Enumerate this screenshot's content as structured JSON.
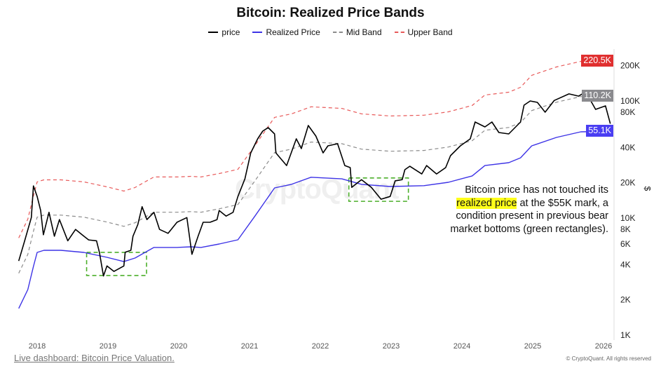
{
  "chart_data": {
    "type": "line",
    "title": "Bitcoin: Realized Price Bands",
    "y_scale": "log",
    "y_axis_side": "right",
    "ylabel": "$",
    "ylim": [
      1000,
      260000
    ],
    "xlim": [
      "2017-09-20",
      "2026-02-20"
    ],
    "y_ticks": [
      "1K",
      "2K",
      "4K",
      "6K",
      "8K",
      "10K",
      "20K",
      "40K",
      "80K",
      "100K",
      "200K"
    ],
    "y_tick_values": [
      1000,
      2000,
      4000,
      6000,
      8000,
      10000,
      20000,
      40000,
      80000,
      100000,
      200000
    ],
    "x_ticks": [
      "2018",
      "2019",
      "2020",
      "2021",
      "2022",
      "2023",
      "2024",
      "2025",
      "2026"
    ],
    "grid": false,
    "legend_position": "top-center",
    "series": [
      {
        "name": "price",
        "color": "#000000",
        "style": "solid",
        "dates": [
          "2017-09-28",
          "2017-10-27",
          "2017-12-02",
          "2017-12-13",
          "2018-01-01",
          "2018-01-19",
          "2018-02-02",
          "2018-03-03",
          "2018-03-31",
          "2018-04-26",
          "2018-06-08",
          "2018-07-18",
          "2018-08-30",
          "2018-09-24",
          "2018-11-03",
          "2018-11-18",
          "2018-12-09",
          "2018-12-27",
          "2019-02-01",
          "2019-03-24",
          "2019-03-31",
          "2019-04-29",
          "2019-05-10",
          "2019-06-04",
          "2019-06-26",
          "2019-07-21",
          "2019-08-26",
          "2019-09-24",
          "2019-11-07",
          "2019-12-23",
          "2020-02-12",
          "2020-03-09",
          "2020-04-10",
          "2020-05-06",
          "2020-06-11",
          "2020-07-17",
          "2020-07-28",
          "2020-09-02",
          "2020-10-08",
          "2020-11-02",
          "2020-12-08",
          "2021-01-07",
          "2021-02-12",
          "2021-03-10",
          "2021-04-07",
          "2021-05-10",
          "2021-05-17",
          "2021-07-11",
          "2021-08-30",
          "2021-09-25",
          "2021-10-31",
          "2021-12-09",
          "2022-01-15",
          "2022-02-09",
          "2022-03-31",
          "2022-05-07",
          "2022-06-04",
          "2022-06-12",
          "2022-08-01",
          "2022-09-21",
          "2022-11-10",
          "2022-12-27",
          "2023-01-22",
          "2023-02-27",
          "2023-03-13",
          "2023-04-07",
          "2023-06-08",
          "2023-07-03",
          "2023-08-23",
          "2023-10-09",
          "2023-11-03",
          "2023-12-24",
          "2024-02-13",
          "2024-03-09",
          "2024-04-29",
          "2024-06-04",
          "2024-07-10",
          "2024-08-30",
          "2024-10-30",
          "2024-11-17",
          "2024-12-19",
          "2025-01-25",
          "2025-03-06",
          "2025-04-22",
          "2025-07-07",
          "2025-08-26",
          "2025-10-01",
          "2025-11-21",
          "2026-01-11",
          "2026-02-05"
        ],
        "values": [
          4300,
          6250,
          10100,
          18800,
          15300,
          11600,
          7200,
          11200,
          7000,
          9700,
          6400,
          8000,
          7000,
          6500,
          6400,
          5100,
          3200,
          3900,
          3500,
          3900,
          5100,
          5300,
          7000,
          8800,
          12500,
          9700,
          11200,
          8000,
          7400,
          9200,
          10100,
          4900,
          7000,
          9200,
          9200,
          9700,
          11600,
          10400,
          11200,
          15300,
          21600,
          36000,
          47500,
          55300,
          59200,
          52300,
          36000,
          28100,
          47500,
          39200,
          61700,
          50200,
          36000,
          41400,
          43100,
          28100,
          27000,
          18300,
          21300,
          18300,
          14500,
          15300,
          20800,
          21300,
          25900,
          27700,
          23800,
          28100,
          23800,
          27000,
          34100,
          41400,
          47500,
          66100,
          60000,
          66100,
          53800,
          52300,
          66100,
          92000,
          100000,
          97300,
          80200,
          101000,
          115000,
          110000,
          120000,
          84700,
          90800,
          64000
        ]
      },
      {
        "name": "Realized Price",
        "color": "#3d33e6",
        "style": "solid",
        "dates": [
          "2017-09-28",
          "2017-11-14",
          "2017-12-13",
          "2018-01-01",
          "2018-02-05",
          "2018-05-03",
          "2018-08-30",
          "2018-12-27",
          "2019-03-24",
          "2019-05-21",
          "2019-07-11",
          "2019-08-26",
          "2019-12-23",
          "2020-03-05",
          "2020-04-25",
          "2020-07-28",
          "2020-11-02",
          "2021-01-29",
          "2021-05-10",
          "2021-08-05",
          "2021-11-14",
          "2022-04-22",
          "2022-08-01",
          "2022-12-27",
          "2023-06-19",
          "2023-10-23",
          "2024-02-23",
          "2024-04-29",
          "2024-08-30",
          "2024-10-30",
          "2024-12-27",
          "2025-05-03",
          "2025-09-06",
          "2026-02-05"
        ],
        "values": [
          1690,
          2450,
          3860,
          5090,
          5300,
          5300,
          5090,
          4620,
          4250,
          4560,
          5090,
          5610,
          5610,
          5680,
          5610,
          6000,
          6520,
          10400,
          18100,
          19400,
          22300,
          21600,
          19400,
          18600,
          18900,
          20200,
          22900,
          28100,
          29700,
          32700,
          41400,
          48800,
          54500,
          55100
        ]
      },
      {
        "name": "Mid Band",
        "color": "#8c8c8c",
        "style": "dashed",
        "dates_from": "Realized Price",
        "values": [
          3380,
          4900,
          7720,
          10180,
          10600,
          10600,
          10180,
          9240,
          8500,
          9120,
          10180,
          11220,
          11220,
          11360,
          11220,
          12000,
          13040,
          20800,
          36200,
          38800,
          44600,
          43200,
          38800,
          37200,
          37800,
          40400,
          45800,
          56200,
          59400,
          65400,
          82800,
          97600,
          109000,
          110200
        ]
      },
      {
        "name": "Upper Band",
        "color": "#e85a5a",
        "style": "dashed",
        "dates_from": "Realized Price",
        "values": [
          6760,
          9800,
          15440,
          20360,
          21200,
          21200,
          20360,
          18480,
          17000,
          18240,
          20360,
          22440,
          22440,
          22720,
          22440,
          24000,
          26080,
          41600,
          72400,
          77600,
          89200,
          86400,
          77600,
          74400,
          75600,
          80800,
          91600,
          112400,
          118800,
          130800,
          165600,
          195200,
          218000,
          220500
        ]
      }
    ],
    "last_value_labels": [
      {
        "series": "Upper Band",
        "text": "220.5K",
        "value": 220500,
        "color": "#e02f2f"
      },
      {
        "series": "Mid Band",
        "text": "110.2K",
        "value": 110200,
        "color": "#8a8a8e"
      },
      {
        "series": "Realized Price",
        "text": "55.1K",
        "value": 55100,
        "color": "#4a3ef2"
      }
    ],
    "highlight_regions": [
      {
        "start": "2018-09-13",
        "end": "2019-07-19",
        "low": 3230,
        "high": 5090,
        "color": "#4caf2a"
      },
      {
        "start": "2022-05-28",
        "end": "2023-03-31",
        "low": 13900,
        "high": 22000,
        "color": "#4caf2a"
      }
    ],
    "annotation": {
      "before": "Bitcoin price has not touched its",
      "highlight": "realized price",
      "after_1": " at the $55K mark, a",
      "line_3": "condition present in previous bear",
      "line_4": "market bottoms (green rectangles).",
      "highlight_color": "#ffff1a"
    }
  },
  "watermark": "CryptoQuant",
  "footer": {
    "link": "Live dashboard: Bitcoin Price Valuation.",
    "copyright": "© CryptoQuant. All rights reserved"
  }
}
